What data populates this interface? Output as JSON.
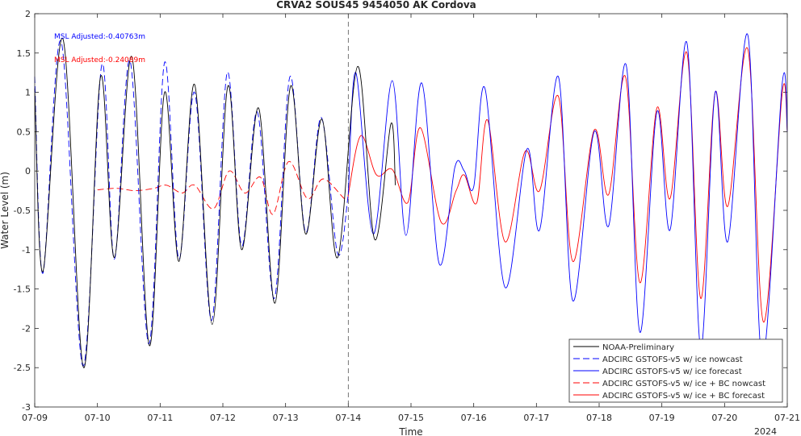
{
  "chart_data": {
    "type": "line",
    "title": "CRVA2 SOUS45 9454050 AK Cordova",
    "xlabel": "Time",
    "ylabel": "Water Level (m)",
    "x_ticks": [
      "07-09",
      "07-10",
      "07-11",
      "07-12",
      "07-13",
      "07-14",
      "07-15",
      "07-16",
      "07-17",
      "07-18",
      "07-19",
      "07-20",
      "07-21"
    ],
    "x_year_label": "2024",
    "ylim": [
      -3,
      2
    ],
    "y_ticks": [
      -3,
      -2.5,
      -2,
      -1.5,
      -1,
      -0.5,
      0,
      0.5,
      1,
      1.5,
      2
    ],
    "xlim_days": [
      0,
      12
    ],
    "nowcast_forecast_divider_day": 5,
    "annotations": [
      {
        "text": "MSL Adjusted:-0.40763m",
        "color": "#0000ff"
      },
      {
        "text": "MSL Adjusted:-0.24089m",
        "color": "#ff0000"
      }
    ],
    "legend_position": "bottom-right",
    "series": [
      {
        "name": "NOAA-Preliminary",
        "color": "#000000",
        "dash": "solid",
        "points": [
          [
            0.0,
            1.05
          ],
          [
            0.13,
            -1.28
          ],
          [
            0.45,
            1.68
          ],
          [
            0.78,
            -2.5
          ],
          [
            1.05,
            1.2
          ],
          [
            1.27,
            -1.1
          ],
          [
            1.55,
            1.45
          ],
          [
            1.83,
            -2.22
          ],
          [
            2.07,
            1.0
          ],
          [
            2.3,
            -1.15
          ],
          [
            2.55,
            1.1
          ],
          [
            2.83,
            -1.95
          ],
          [
            3.08,
            1.08
          ],
          [
            3.3,
            -1.0
          ],
          [
            3.57,
            0.8
          ],
          [
            3.83,
            -1.68
          ],
          [
            4.08,
            1.08
          ],
          [
            4.32,
            -0.8
          ],
          [
            4.58,
            0.66
          ],
          [
            4.83,
            -1.1
          ],
          [
            5.15,
            1.33
          ],
          [
            5.42,
            -0.87
          ],
          [
            5.68,
            0.6
          ],
          [
            5.75,
            -0.18
          ]
        ]
      },
      {
        "name": "ADCIRC GSTOFS-v5 w/ ice nowcast",
        "color": "#0000ff",
        "dash": "dashed",
        "points": [
          [
            0.0,
            1.2
          ],
          [
            0.13,
            -1.3
          ],
          [
            0.42,
            1.65
          ],
          [
            0.77,
            -2.48
          ],
          [
            1.07,
            1.35
          ],
          [
            1.27,
            -1.12
          ],
          [
            1.52,
            1.4
          ],
          [
            1.82,
            -2.2
          ],
          [
            2.07,
            1.38
          ],
          [
            2.3,
            -1.12
          ],
          [
            2.55,
            1.0
          ],
          [
            2.82,
            -1.9
          ],
          [
            3.07,
            1.25
          ],
          [
            3.3,
            -0.95
          ],
          [
            3.55,
            0.75
          ],
          [
            3.82,
            -1.62
          ],
          [
            4.07,
            1.2
          ],
          [
            4.32,
            -0.78
          ],
          [
            4.57,
            0.68
          ],
          [
            4.83,
            -1.05
          ],
          [
            5.0,
            -0.3
          ]
        ]
      },
      {
        "name": "ADCIRC GSTOFS-v5 w/ ice forecast",
        "color": "#0000ff",
        "dash": "solid",
        "points": [
          [
            5.0,
            -0.3
          ],
          [
            5.12,
            1.25
          ],
          [
            5.4,
            -0.8
          ],
          [
            5.7,
            1.15
          ],
          [
            5.92,
            -0.82
          ],
          [
            6.17,
            1.12
          ],
          [
            6.45,
            -1.18
          ],
          [
            6.7,
            0.05
          ],
          [
            6.85,
            0.0
          ],
          [
            7.0,
            -0.2
          ],
          [
            7.18,
            1.05
          ],
          [
            7.5,
            -1.48
          ],
          [
            7.85,
            0.28
          ],
          [
            8.05,
            -0.75
          ],
          [
            8.35,
            1.2
          ],
          [
            8.58,
            -1.65
          ],
          [
            8.92,
            0.5
          ],
          [
            9.15,
            -0.7
          ],
          [
            9.43,
            1.35
          ],
          [
            9.65,
            -2.05
          ],
          [
            9.92,
            0.75
          ],
          [
            10.13,
            -0.75
          ],
          [
            10.4,
            1.63
          ],
          [
            10.62,
            -2.25
          ],
          [
            10.85,
            1.0
          ],
          [
            11.05,
            -0.9
          ],
          [
            11.37,
            1.73
          ],
          [
            11.6,
            -2.4
          ],
          [
            11.92,
            1.12
          ],
          [
            12.0,
            0.5
          ]
        ]
      },
      {
        "name": "ADCIRC GSTOFS-v5 w/ ice + BC nowcast",
        "color": "#ff0000",
        "dash": "dashed",
        "points": [
          [
            1.0,
            -0.24
          ],
          [
            1.3,
            -0.22
          ],
          [
            1.6,
            -0.25
          ],
          [
            1.9,
            -0.22
          ],
          [
            2.1,
            -0.18
          ],
          [
            2.35,
            -0.28
          ],
          [
            2.55,
            -0.18
          ],
          [
            2.85,
            -0.48
          ],
          [
            3.1,
            0.0
          ],
          [
            3.35,
            -0.28
          ],
          [
            3.6,
            -0.08
          ],
          [
            3.8,
            -0.55
          ],
          [
            4.05,
            0.12
          ],
          [
            4.35,
            -0.35
          ],
          [
            4.6,
            -0.1
          ],
          [
            4.95,
            -0.36
          ],
          [
            5.0,
            -0.3
          ]
        ]
      },
      {
        "name": "ADCIRC GSTOFS-v5 w/ ice + BC forecast",
        "color": "#ff0000",
        "dash": "solid",
        "points": [
          [
            5.0,
            -0.3
          ],
          [
            5.2,
            0.45
          ],
          [
            5.45,
            -0.05
          ],
          [
            5.7,
            0.02
          ],
          [
            5.95,
            -0.4
          ],
          [
            6.15,
            0.55
          ],
          [
            6.48,
            -0.65
          ],
          [
            6.72,
            -0.25
          ],
          [
            6.85,
            -0.05
          ],
          [
            7.05,
            -0.4
          ],
          [
            7.22,
            0.65
          ],
          [
            7.5,
            -0.9
          ],
          [
            7.82,
            0.25
          ],
          [
            8.05,
            -0.25
          ],
          [
            8.35,
            0.95
          ],
          [
            8.58,
            -1.15
          ],
          [
            8.92,
            0.52
          ],
          [
            9.15,
            -0.3
          ],
          [
            9.42,
            1.2
          ],
          [
            9.65,
            -1.42
          ],
          [
            9.92,
            0.8
          ],
          [
            10.13,
            -0.35
          ],
          [
            10.4,
            1.5
          ],
          [
            10.62,
            -1.62
          ],
          [
            10.85,
            1.0
          ],
          [
            11.05,
            -0.45
          ],
          [
            11.37,
            1.55
          ],
          [
            11.62,
            -1.92
          ],
          [
            11.92,
            1.0
          ],
          [
            12.0,
            0.5
          ]
        ]
      }
    ]
  }
}
